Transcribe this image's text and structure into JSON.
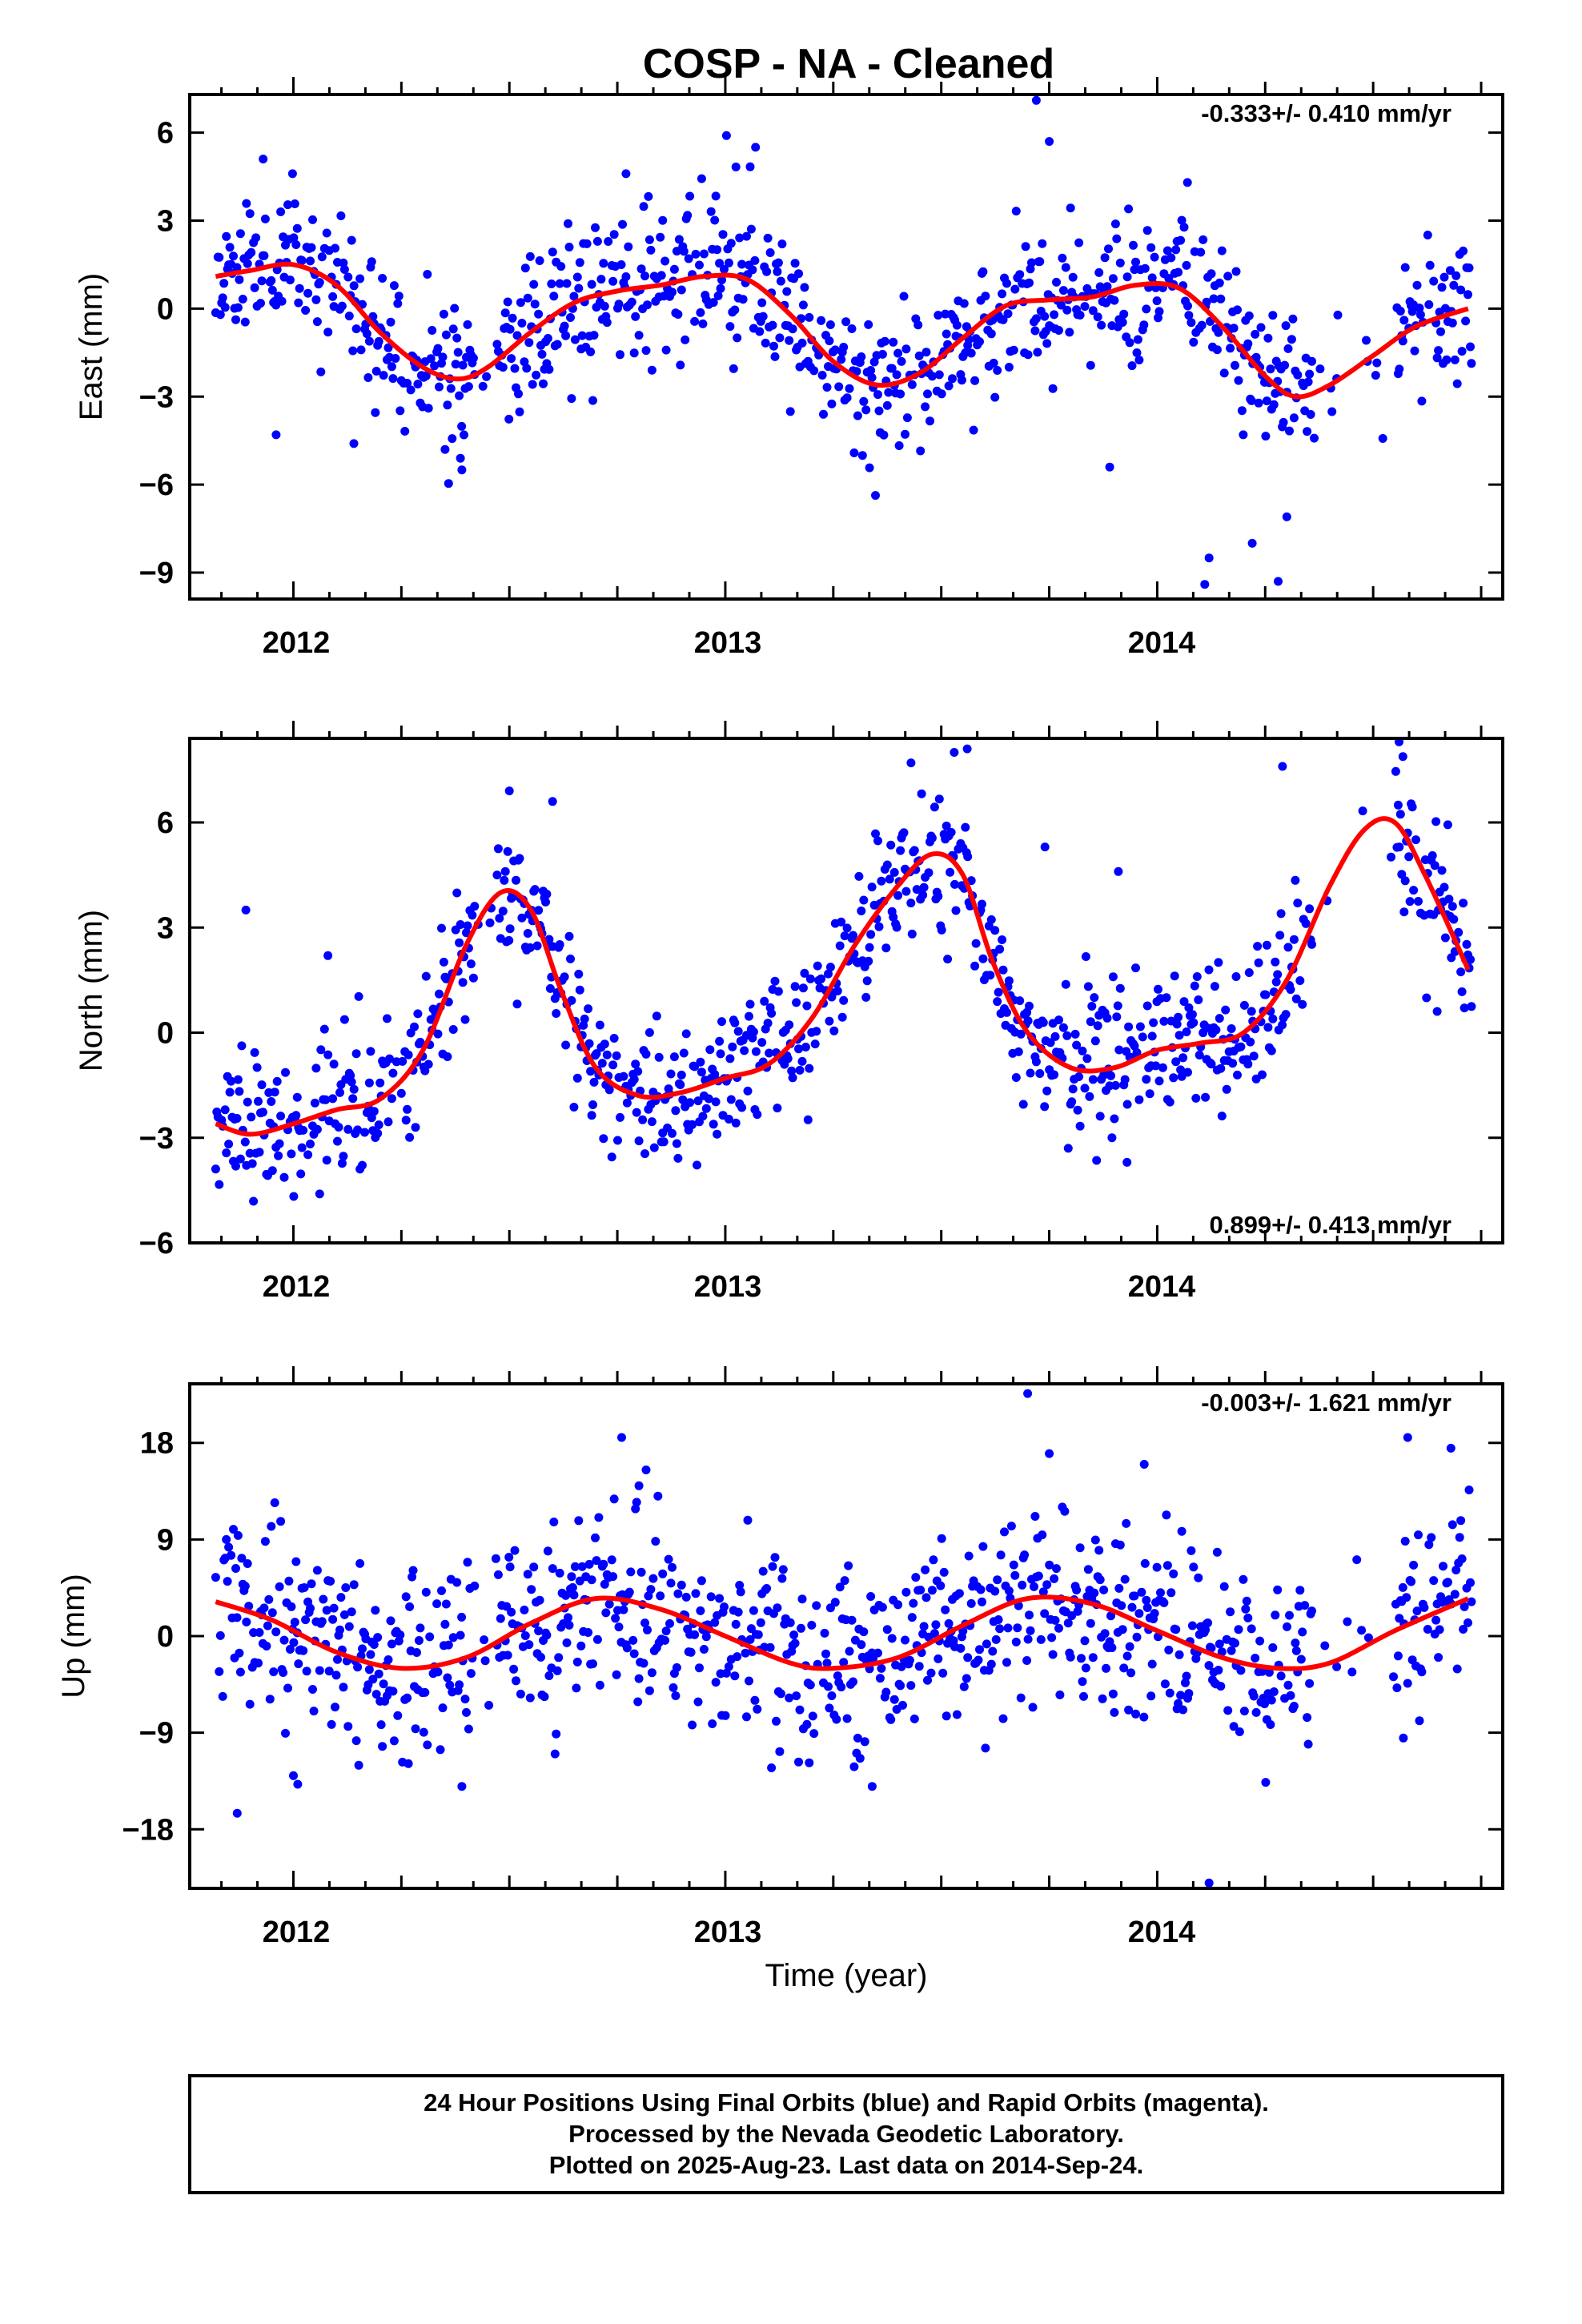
{
  "chart_data": {
    "title": "COSP  - NA - Cleaned",
    "xlabel": "Time (year)",
    "footer": {
      "line1": "24 Hour Positions Using Final Orbits (blue) and Rapid Orbits (magenta).",
      "line2": "Processed by the Nevada Geodetic Laboratory.",
      "line3": "Plotted on 2025-Aug-23. Last data on 2014-Sep-24."
    },
    "colors": {
      "final_orbits": "#0000ff",
      "model_fit": "#ff0000",
      "frame": "#000000"
    },
    "xlim": [
      2011.76,
      2014.8
    ],
    "x_ticks": [
      2012,
      2013,
      2014
    ],
    "x_tick_labels": [
      "2012",
      "2013",
      "2014"
    ],
    "panels": [
      {
        "type": "scatter",
        "component": "east",
        "ylabel": "East (mm)",
        "ylim": [
          -9.9,
          7.3
        ],
        "y_ticks": [
          6,
          3,
          0,
          -3,
          -6,
          -9
        ],
        "y_tick_labels": [
          "6",
          "3",
          "0",
          "−3",
          "−6",
          "−9"
        ],
        "rate": "-0.333+/- 0.410 mm/yr",
        "rate_position": "top-right",
        "model": {
          "type": "line",
          "x": [
            2011.82,
            2011.9,
            2012.0,
            2012.1,
            2012.2,
            2012.3,
            2012.38,
            2012.45,
            2012.55,
            2012.65,
            2012.75,
            2012.85,
            2012.95,
            2013.05,
            2013.15,
            2013.25,
            2013.35,
            2013.45,
            2013.55,
            2013.65,
            2013.75,
            2013.85,
            2013.95,
            2014.05,
            2014.15,
            2014.25,
            2014.32,
            2014.4,
            2014.5,
            2014.6,
            2014.72
          ],
          "y": [
            1.1,
            1.3,
            1.5,
            0.8,
            -0.8,
            -2.0,
            -2.4,
            -2.0,
            -0.8,
            0.2,
            0.6,
            0.8,
            1.1,
            1.0,
            -0.2,
            -1.8,
            -2.6,
            -2.2,
            -1.0,
            0.1,
            0.3,
            0.4,
            0.8,
            0.7,
            -0.6,
            -2.3,
            -3.0,
            -2.6,
            -1.6,
            -0.6,
            0.0
          ]
        },
        "anchors": {
          "x": [
            2011.82,
            2011.9,
            2012.0,
            2012.1,
            2012.2,
            2012.3,
            2012.38,
            2012.45,
            2012.55,
            2012.65,
            2012.75,
            2012.85,
            2012.95,
            2013.05,
            2013.15,
            2013.25,
            2013.35,
            2013.45,
            2013.55,
            2013.65,
            2013.75,
            2013.85,
            2013.95,
            2014.05,
            2014.15,
            2014.25,
            2014.32,
            2014.4,
            2014.5,
            2014.6,
            2014.72
          ],
          "y": [
            1.1,
            1.3,
            1.5,
            0.8,
            -0.8,
            -2.0,
            -2.4,
            -2.0,
            -0.8,
            0.2,
            0.6,
            0.8,
            1.1,
            1.0,
            -0.2,
            -1.8,
            -2.6,
            -2.2,
            -1.0,
            0.1,
            0.3,
            0.4,
            0.8,
            0.7,
            -0.6,
            -2.3,
            -3.0,
            -2.6,
            -1.6,
            -0.6,
            0.0
          ]
        },
        "noise_sd": 1.3,
        "seed": 11,
        "gaps": [
          [
            2012.42,
            2012.47
          ],
          [
            2014.36,
            2014.55
          ]
        ],
        "outliers": {
          "x": [
            2011.93,
            2011.96,
            2012.14,
            2013.07,
            2013.72,
            2013.75,
            2014.07,
            2014.11,
            2014.12,
            2014.22,
            2014.28,
            2014.3,
            2013.89,
            2012.77,
            2012.39
          ],
          "y": [
            5.1,
            -4.3,
            -4.6,
            5.5,
            7.1,
            5.7,
            4.3,
            -9.4,
            -8.5,
            -8.0,
            -9.3,
            -7.1,
            -5.4,
            4.6,
            -5.5
          ]
        }
      },
      {
        "type": "scatter",
        "component": "north",
        "ylabel": "North (mm)",
        "ylim": [
          -6.0,
          8.4
        ],
        "y_ticks": [
          6,
          3,
          0,
          -3,
          -6
        ],
        "y_tick_labels": [
          "6",
          "3",
          "0",
          "−3",
          "−6"
        ],
        "rate": "0.899+/- 0.413 mm/yr",
        "rate_position": "bottom-right",
        "model": {
          "type": "line",
          "x": [
            2011.82,
            2011.9,
            2012.0,
            2012.1,
            2012.2,
            2012.3,
            2012.4,
            2012.48,
            2012.55,
            2012.62,
            2012.7,
            2012.8,
            2012.9,
            2013.0,
            2013.1,
            2013.2,
            2013.3,
            2013.4,
            2013.48,
            2013.55,
            2013.62,
            2013.7,
            2013.8,
            2013.9,
            2014.0,
            2014.1,
            2014.2,
            2014.3,
            2014.4,
            2014.48,
            2014.55,
            2014.62,
            2014.72
          ],
          "y": [
            -2.6,
            -2.9,
            -2.6,
            -2.2,
            -1.9,
            -0.5,
            2.5,
            4.0,
            3.5,
            1.2,
            -1.0,
            -1.8,
            -1.7,
            -1.3,
            -0.9,
            0.4,
            2.5,
            4.2,
            5.1,
            4.5,
            2.0,
            0.0,
            -1.0,
            -1.0,
            -0.5,
            -0.3,
            0.0,
            1.5,
            4.2,
            5.8,
            6.0,
            4.5,
            1.8
          ]
        },
        "anchors": {
          "x": [
            2011.82,
            2011.9,
            2012.0,
            2012.1,
            2012.2,
            2012.3,
            2012.4,
            2012.48,
            2012.55,
            2012.62,
            2012.7,
            2012.8,
            2012.9,
            2013.0,
            2013.1,
            2013.2,
            2013.3,
            2013.4,
            2013.48,
            2013.55,
            2013.62,
            2013.7,
            2013.8,
            2013.9,
            2014.0,
            2014.1,
            2014.2,
            2014.3,
            2014.4,
            2014.48,
            2014.55,
            2014.62,
            2014.72
          ],
          "y": [
            -2.6,
            -2.9,
            -2.6,
            -2.2,
            -1.9,
            -0.5,
            2.5,
            4.0,
            3.5,
            1.2,
            -1.0,
            -1.8,
            -1.7,
            -1.3,
            -0.9,
            0.4,
            2.5,
            4.2,
            5.1,
            4.5,
            2.0,
            0.0,
            -1.0,
            -1.0,
            -0.5,
            -0.3,
            0.0,
            1.5,
            4.2,
            5.8,
            6.0,
            4.5,
            1.8
          ]
        },
        "noise_sd": 1.0,
        "seed": 23,
        "gaps": [
          [
            2012.42,
            2012.47
          ],
          [
            2014.36,
            2014.55
          ]
        ],
        "outliers": {
          "x": [
            2011.89,
            2012.08,
            2012.5,
            2012.6,
            2013.43,
            2013.53,
            2013.56,
            2013.74,
            2013.91,
            2013.93,
            2014.29,
            2014.56
          ],
          "y": [
            3.5,
            2.2,
            6.9,
            6.6,
            7.7,
            8.0,
            8.1,
            5.3,
            4.6,
            -3.7,
            7.6,
            8.4
          ]
        }
      },
      {
        "type": "scatter",
        "component": "up",
        "ylabel": "Up (mm)",
        "ylim": [
          -23.5,
          23.5
        ],
        "y_ticks": [
          18,
          9,
          0,
          -9,
          -18
        ],
        "y_tick_labels": [
          "18",
          "9",
          "0",
          "−9",
          "−18"
        ],
        "rate": "-0.003+/- 1.621 mm/yr",
        "rate_position": "top-right",
        "model": {
          "type": "line",
          "x": [
            2011.82,
            2011.95,
            2012.1,
            2012.25,
            2012.4,
            2012.55,
            2012.7,
            2012.85,
            2013.0,
            2013.15,
            2013.25,
            2013.4,
            2013.55,
            2013.7,
            2013.85,
            2014.0,
            2014.15,
            2014.28,
            2014.4,
            2014.55,
            2014.72
          ],
          "y": [
            3.2,
            1.5,
            -1.5,
            -3.0,
            -2.0,
            1.2,
            3.5,
            2.5,
            0.0,
            -2.5,
            -3.0,
            -2.0,
            1.0,
            3.5,
            3.0,
            0.5,
            -2.0,
            -3.0,
            -2.5,
            0.5,
            3.5
          ]
        },
        "anchors": {
          "x": [
            2011.82,
            2011.95,
            2012.1,
            2012.25,
            2012.4,
            2012.55,
            2012.7,
            2012.85,
            2013.0,
            2013.15,
            2013.25,
            2013.4,
            2013.55,
            2013.7,
            2013.85,
            2014.0,
            2014.15,
            2014.28,
            2014.4,
            2014.55,
            2014.72
          ],
          "y": [
            3.2,
            1.5,
            -1.5,
            -3.0,
            -2.0,
            1.2,
            3.5,
            2.5,
            0.0,
            -2.5,
            -3.0,
            -2.0,
            1.0,
            3.5,
            3.0,
            0.5,
            -2.0,
            -3.0,
            -2.5,
            0.5,
            3.5
          ]
        },
        "noise_sd": 4.2,
        "seed": 37,
        "gaps": [
          [
            2012.42,
            2012.47
          ],
          [
            2014.36,
            2014.55
          ]
        ],
        "outliers": {
          "x": [
            2011.87,
            2012.0,
            2012.01,
            2012.39,
            2012.76,
            2012.8,
            2013.7,
            2013.75,
            2013.97,
            2014.12,
            2014.58,
            2014.68,
            2014.57,
            2013.34
          ],
          "y": [
            -16.5,
            -13.0,
            -13.8,
            -14.0,
            18.5,
            14.0,
            22.6,
            17.0,
            16.0,
            -23.0,
            18.5,
            17.5,
            -9.5,
            -14.0
          ]
        }
      }
    ]
  }
}
